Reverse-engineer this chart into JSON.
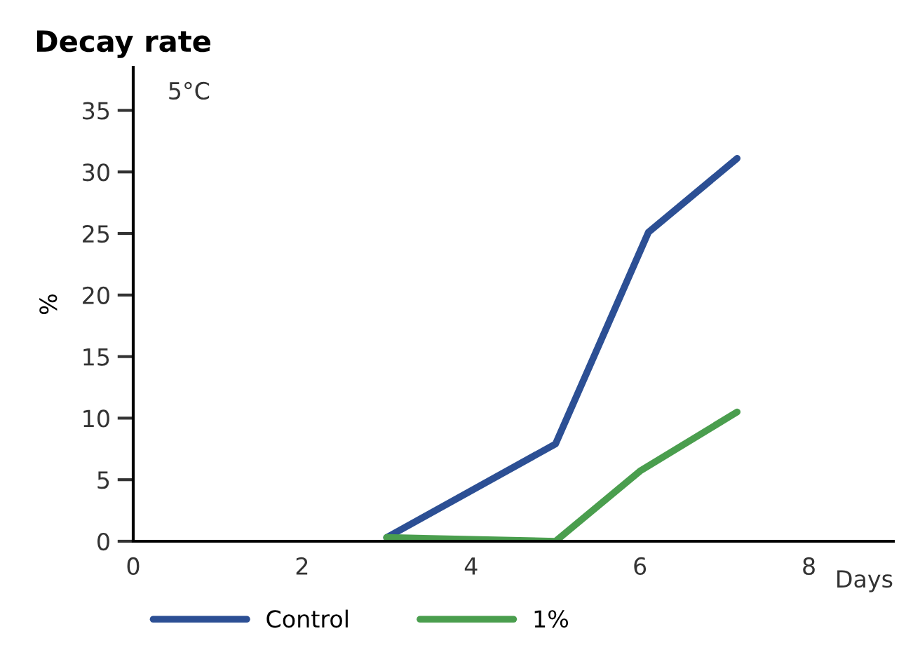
{
  "chart_data": {
    "type": "line",
    "title": "Decay rate",
    "ylabel": "%",
    "xlabel": "Days",
    "annotations": [
      "5°C"
    ],
    "series": [
      {
        "name": "Control",
        "color": "#2c4f94",
        "x": [
          3,
          5,
          6.1,
          7.15
        ],
        "values": [
          0.3,
          7.9,
          25.1,
          31.1
        ]
      },
      {
        "name": "1%",
        "color": "#4a9e4e",
        "x": [
          3,
          5,
          6,
          7.15
        ],
        "values": [
          0.3,
          0,
          5.7,
          10.5
        ]
      }
    ],
    "xlim": [
      0,
      9
    ],
    "xticks": [
      0,
      2,
      4,
      6,
      8
    ],
    "ylim": [
      0,
      38.5
    ],
    "yticks": [
      0,
      5,
      10,
      15,
      20,
      25,
      30,
      35
    ],
    "grid": false,
    "legend": "bottom",
    "marker": "none",
    "line_style": "solid"
  }
}
